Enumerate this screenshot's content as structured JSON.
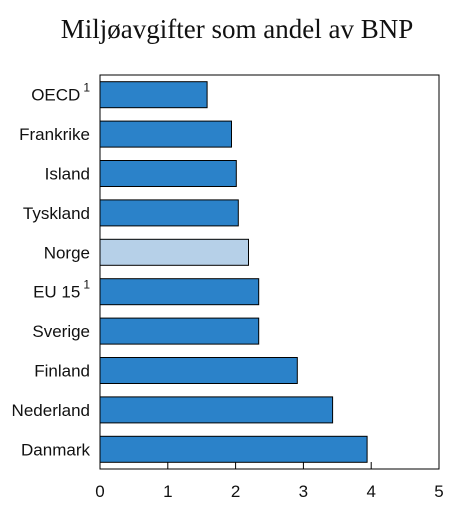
{
  "chart_data": {
    "type": "bar",
    "orientation": "horizontal",
    "title": "Miljøavgifter som andel av BNP",
    "categories": [
      "OECD",
      "Frankrike",
      "Island",
      "Tyskland",
      "Norge",
      "EU 15",
      "Sverige",
      "Finland",
      "Nederland",
      "Danmark"
    ],
    "category_superscripts": [
      "1",
      "",
      "",
      "",
      "",
      "1",
      "",
      "",
      "",
      ""
    ],
    "values": [
      1.58,
      1.94,
      2.01,
      2.04,
      2.19,
      2.34,
      2.34,
      2.91,
      3.43,
      3.94
    ],
    "highlight": "Norge",
    "xlim": [
      0,
      5
    ],
    "xticks": [
      "0",
      "1",
      "2",
      "3",
      "4",
      "5"
    ],
    "grid": false,
    "colors": {
      "bar": "#2b82c9",
      "highlight": "#b6d0e8",
      "bar_stroke": "#000000",
      "axis": "#000000"
    }
  }
}
